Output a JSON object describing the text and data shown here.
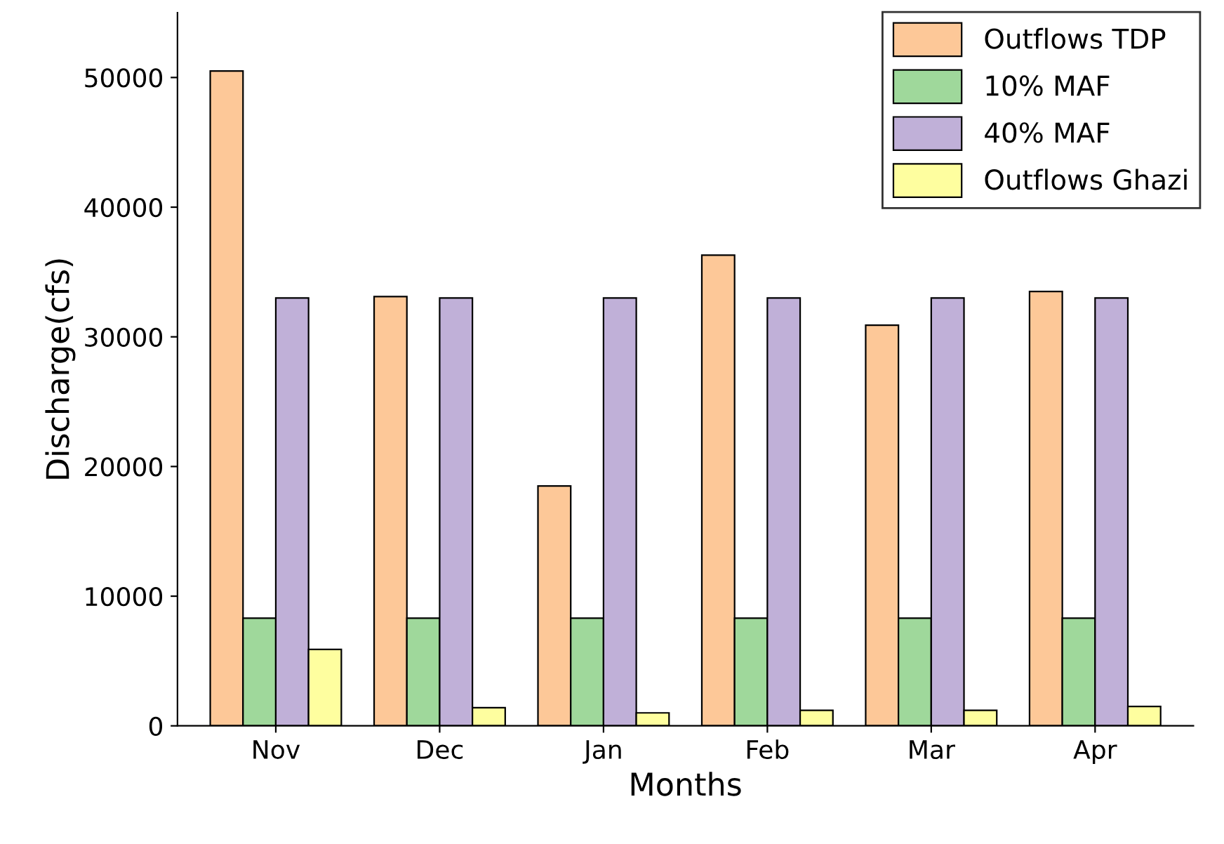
{
  "chart_data": {
    "type": "bar",
    "xlabel": "Months",
    "ylabel": "Discharge(cfs)",
    "categories": [
      "Nov",
      "Dec",
      "Jan",
      "Feb",
      "Mar",
      "Apr"
    ],
    "series": [
      {
        "name": "Outflows TDP",
        "color": "#fdc898",
        "values": [
          50500,
          33100,
          18500,
          36300,
          30900,
          33500
        ]
      },
      {
        "name": "10% MAF",
        "color": "#9fd89b",
        "values": [
          8300,
          8300,
          8300,
          8300,
          8300,
          8300
        ]
      },
      {
        "name": "40% MAF",
        "color": "#c0b0d8",
        "values": [
          33000,
          33000,
          33000,
          33000,
          33000,
          33000
        ]
      },
      {
        "name": "Outflows Ghazi",
        "color": "#fefe9f",
        "values": [
          5900,
          1400,
          1000,
          1200,
          1200,
          1500
        ]
      }
    ],
    "ylim": [
      0,
      55000
    ],
    "yticks": [
      0,
      10000,
      20000,
      30000,
      40000,
      50000
    ],
    "grid": false,
    "legend": "top right"
  }
}
